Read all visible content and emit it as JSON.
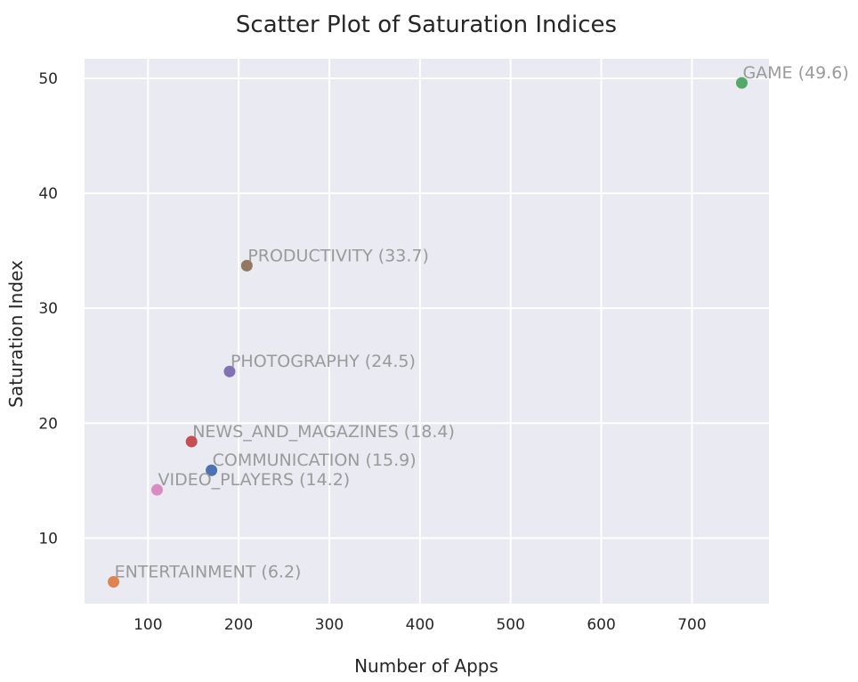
{
  "chart_data": {
    "type": "scatter",
    "title": "Scatter Plot of Saturation Indices",
    "xlabel": "Number of Apps",
    "ylabel": "Saturation Index",
    "xlim": [
      30,
      785
    ],
    "ylim": [
      4.3,
      51.7
    ],
    "xticks": [
      100,
      200,
      300,
      400,
      500,
      600,
      700
    ],
    "yticks": [
      10,
      20,
      30,
      40,
      50
    ],
    "grid": true,
    "background_color": "#eaeaf2",
    "points": [
      {
        "category": "COMMUNICATION",
        "x": 170,
        "y": 15.9,
        "label": "COMMUNICATION (15.9)",
        "color": "#4c72b0"
      },
      {
        "category": "ENTERTAINMENT",
        "x": 62,
        "y": 6.2,
        "label": "ENTERTAINMENT (6.2)",
        "color": "#dd8452"
      },
      {
        "category": "GAME",
        "x": 755,
        "y": 49.6,
        "label": "GAME (49.6)",
        "color": "#55a868"
      },
      {
        "category": "NEWS_AND_MAGAZINES",
        "x": 148,
        "y": 18.4,
        "label": "NEWS_AND_MAGAZINES (18.4)",
        "color": "#c44e52"
      },
      {
        "category": "PHOTOGRAPHY",
        "x": 190,
        "y": 24.5,
        "label": "PHOTOGRAPHY (24.5)",
        "color": "#8172b3"
      },
      {
        "category": "PRODUCTIVITY",
        "x": 209,
        "y": 33.7,
        "label": "PRODUCTIVITY (33.7)",
        "color": "#937860"
      },
      {
        "category": "VIDEO_PLAYERS",
        "x": 110,
        "y": 14.2,
        "label": "VIDEO_PLAYERS (14.2)",
        "color": "#da8bc3"
      }
    ]
  }
}
